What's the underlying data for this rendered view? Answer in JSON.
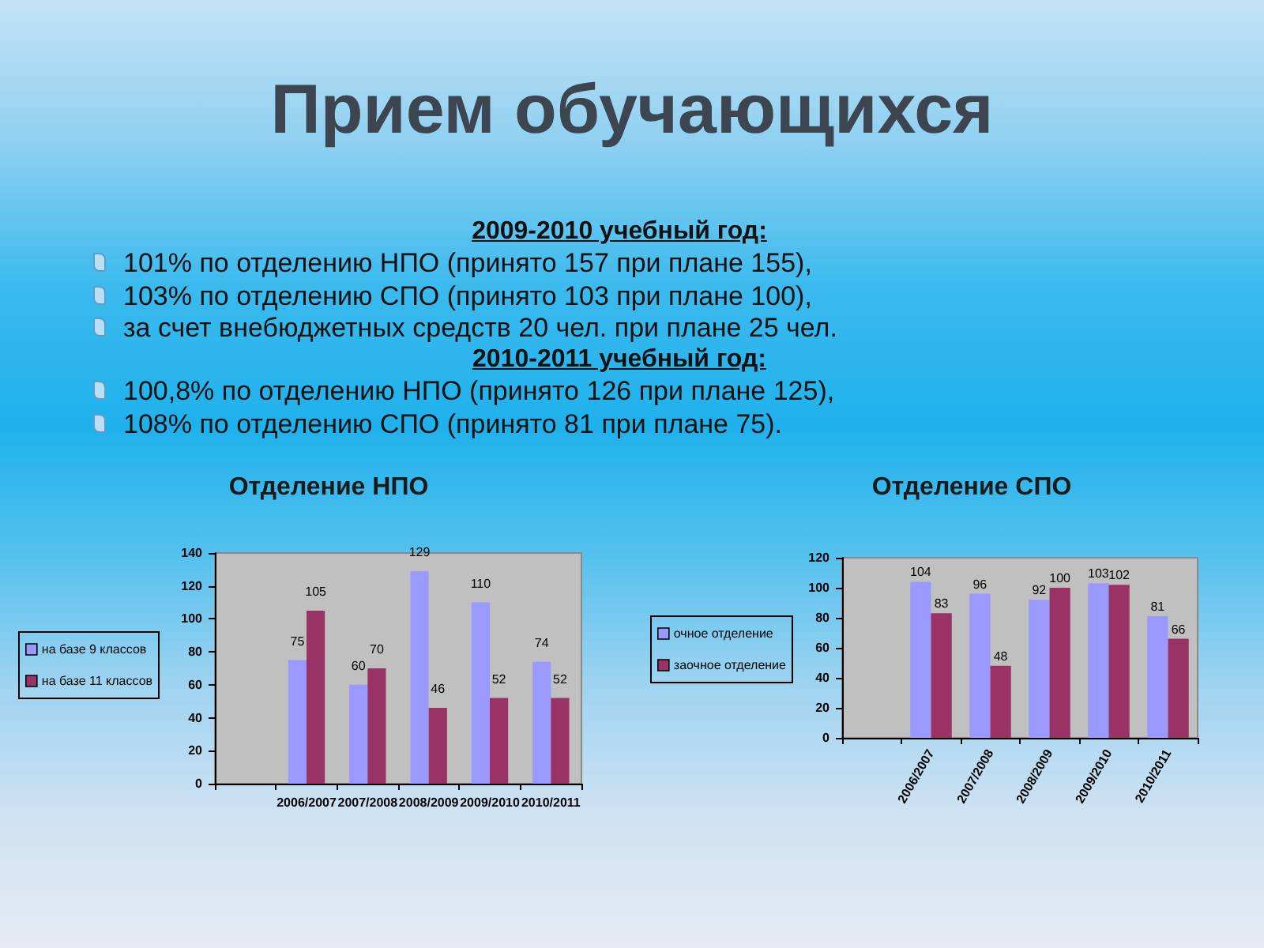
{
  "chart_data": [
    {
      "type": "other",
      "title": "Прием обучающихся"
    },
    {
      "type": "other",
      "title": "2009-2010 учебный год:",
      "annotations": [
        "101% по отделению НПО (принято 157 при плане 155),",
        "103% по отделению СПО (принято 103 при плане 100),",
        "за счет внебюджетных средств 20 чел. при плане 25 чел."
      ]
    },
    {
      "type": "other",
      "title": "2010-2011 учебный год:",
      "annotations": [
        "100,8% по отделению НПО (принято 126 при плане 125),",
        "108% по отделению СПО (принято 81 при плане 75)."
      ]
    },
    {
      "type": "bar",
      "title": "Отделение НПО",
      "categories": [
        null,
        "2006/2007",
        "2007/2008",
        "2008/2009",
        "2009/2010",
        "2010/2011"
      ],
      "series": [
        {
          "name": "на базе 9 классов",
          "color": "#9999ff",
          "values": [
            null,
            75,
            60,
            129,
            110,
            74
          ]
        },
        {
          "name": "на базе 11 классов",
          "color": "#993366",
          "values": [
            null,
            105,
            70,
            46,
            52,
            52
          ]
        }
      ],
      "ylim": [
        0,
        140
      ],
      "yticks": [
        0,
        20,
        40,
        60,
        80,
        100,
        120,
        140
      ],
      "data_labels": true,
      "legend": "left"
    },
    {
      "type": "bar",
      "title": "Отделение СПО",
      "categories": [
        null,
        "2006/2007",
        "2007/2008",
        "2008/2009",
        "2009/2010",
        "2010/2011"
      ],
      "series": [
        {
          "name": "очное отделение",
          "color": "#9999ff",
          "values": [
            null,
            104,
            96,
            92,
            103,
            81
          ]
        },
        {
          "name": "заочное отделение",
          "color": "#993366",
          "values": [
            null,
            83,
            48,
            100,
            102,
            66
          ]
        }
      ],
      "ylim": [
        0,
        120
      ],
      "yticks": [
        0,
        20,
        40,
        60,
        80,
        100,
        120
      ],
      "data_labels": true,
      "legend": "left"
    }
  ]
}
